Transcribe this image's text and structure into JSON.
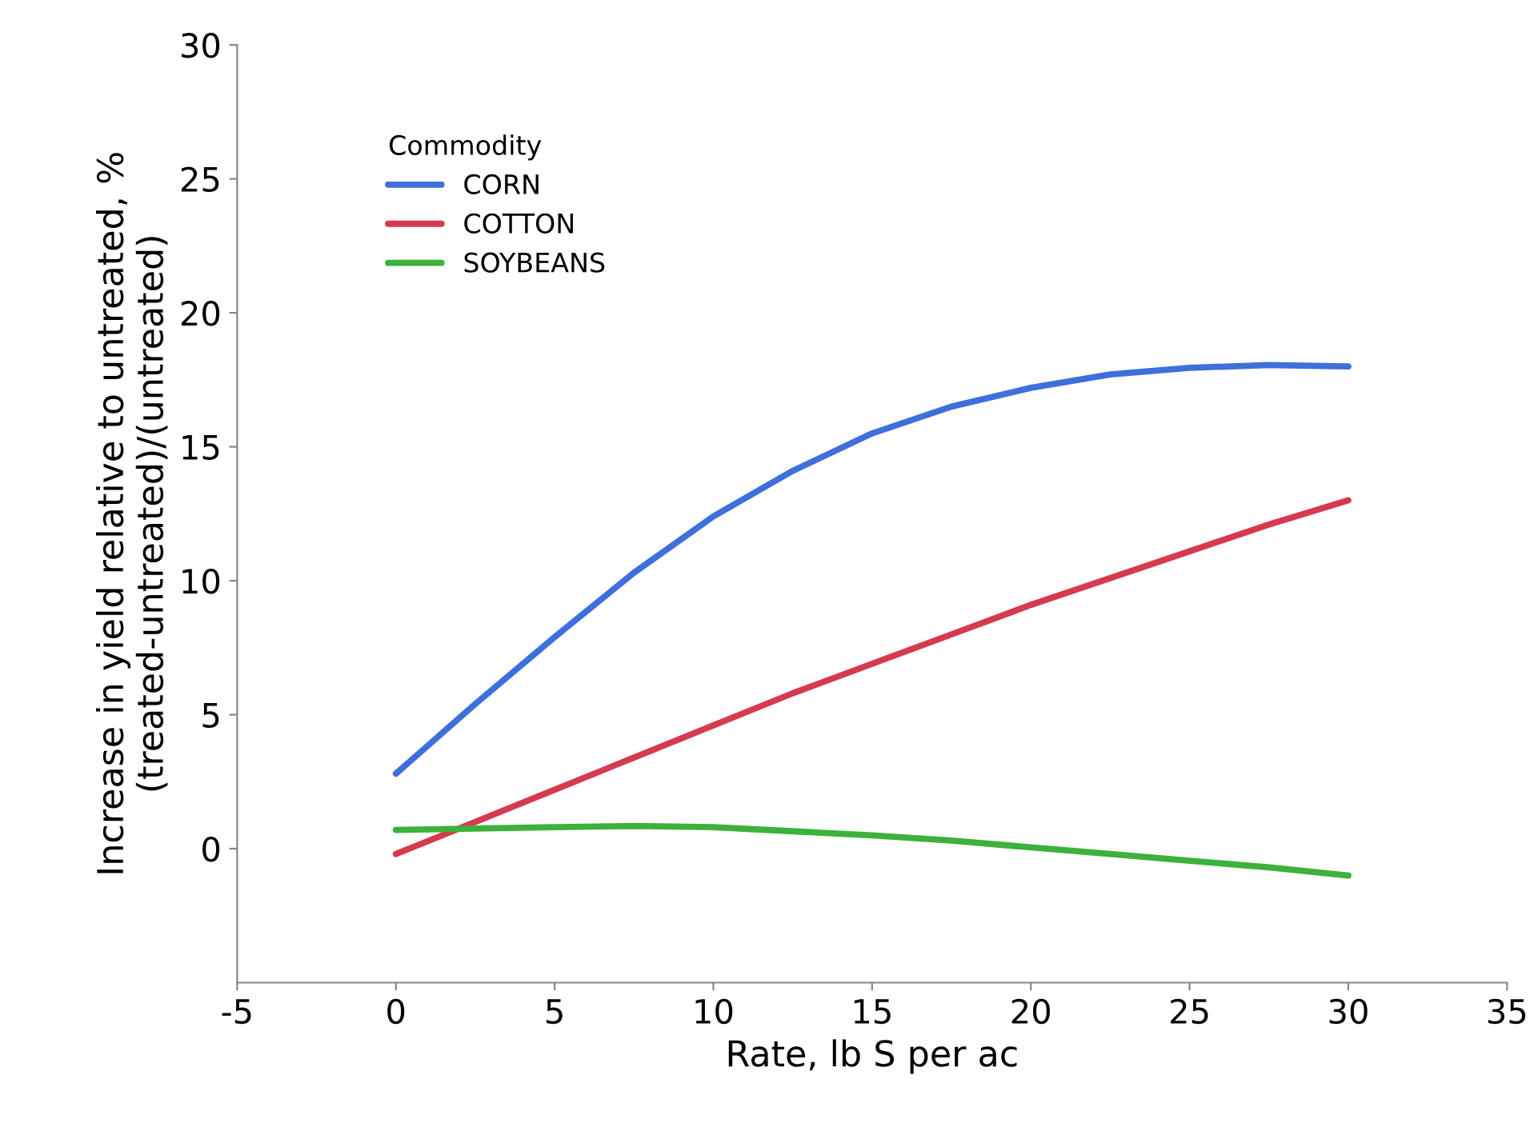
{
  "chart_data": {
    "type": "line",
    "xlabel": "Rate, lb S per ac",
    "ylabel": "Increase in yield relative to untreated, %\n(treated-untreated)/(untreated)",
    "legend_title": "Commodity",
    "x": [
      0,
      2.5,
      5,
      7.5,
      10,
      12.5,
      15,
      17.5,
      20,
      22.5,
      25,
      27.5,
      30
    ],
    "series": [
      {
        "name": "CORN",
        "color": "#3e6fdc",
        "values": [
          2.8,
          5.4,
          7.9,
          10.3,
          12.4,
          14.1,
          15.5,
          16.5,
          17.2,
          17.7,
          17.95,
          18.05,
          18.0
        ]
      },
      {
        "name": "COTTON",
        "color": "#d63a4e",
        "values": [
          -0.2,
          1.0,
          2.2,
          3.4,
          4.6,
          5.8,
          6.9,
          8.0,
          9.1,
          10.1,
          11.1,
          12.1,
          13.0
        ]
      },
      {
        "name": "SOYBEANS",
        "color": "#3cb13c",
        "values": [
          0.7,
          0.75,
          0.8,
          0.85,
          0.8,
          0.65,
          0.5,
          0.3,
          0.05,
          -0.2,
          -0.45,
          -0.7,
          -1.0
        ]
      }
    ],
    "xlim": [
      -5,
      35
    ],
    "ylim": [
      -5,
      30
    ],
    "xticks": [
      -5,
      0,
      5,
      10,
      15,
      20,
      25,
      30,
      35
    ],
    "yticks": [
      0,
      5,
      10,
      15,
      20,
      25,
      30
    ],
    "grid": false,
    "legend": "top left",
    "marker": "none",
    "line_style": "solid"
  }
}
